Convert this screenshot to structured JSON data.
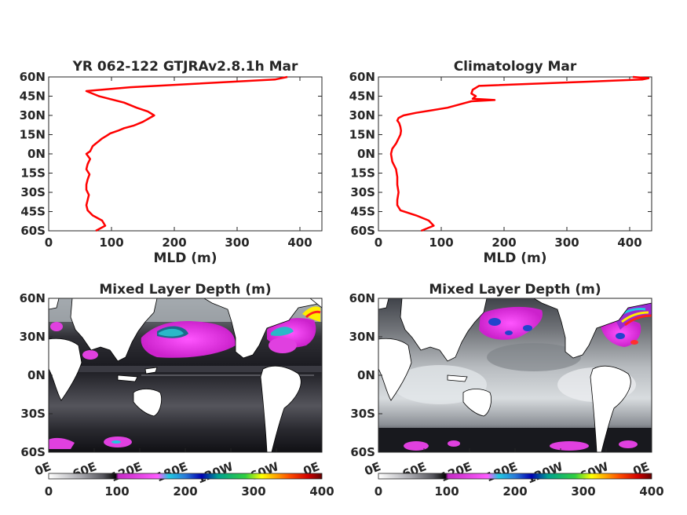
{
  "chart_data": [
    {
      "type": "line",
      "title": "YR 062-122 GTJRAv2.8.1h Mar",
      "xlabel": "MLD (m)",
      "ylabel": "",
      "xlim": [
        0,
        435
      ],
      "ylim": [
        -60,
        60
      ],
      "xticks": [
        "0",
        "100",
        "200",
        "300",
        "400"
      ],
      "yticks": [
        "60N",
        "45N",
        "30N",
        "15N",
        "0N",
        "15S",
        "30S",
        "45S",
        "60S"
      ],
      "line_color": "#ff0000",
      "series": [
        {
          "x": [
            75,
            90,
            85,
            70,
            62,
            60,
            62,
            64,
            60,
            60,
            62,
            65,
            60,
            62,
            66,
            60,
            66,
            68,
            70,
            75,
            80,
            85,
            92,
            98,
            110,
            120,
            135,
            150,
            168,
            158,
            140,
            120,
            80,
            60,
            130,
            360,
            380
          ],
          "y": [
            -60,
            -56,
            -52,
            -48,
            -44,
            -40,
            -36,
            -32,
            -28,
            -24,
            -20,
            -16,
            -12,
            -8,
            -4,
            0,
            2,
            4,
            6,
            8,
            10,
            12,
            14,
            16,
            18,
            20,
            22,
            25,
            30,
            33,
            36,
            40,
            45,
            49,
            52,
            58,
            60
          ]
        }
      ]
    },
    {
      "type": "line",
      "title": "Climatology Mar",
      "xlabel": "MLD (m)",
      "ylabel": "",
      "xlim": [
        0,
        435
      ],
      "ylim": [
        -60,
        60
      ],
      "xticks": [
        "0",
        "100",
        "200",
        "300",
        "400"
      ],
      "yticks": [
        "60N",
        "45N",
        "30N",
        "15N",
        "0N",
        "15S",
        "30S",
        "45S",
        "60S"
      ],
      "line_color": "#ff0000",
      "series": [
        {
          "x": [
            68,
            88,
            80,
            60,
            35,
            30,
            30,
            32,
            30,
            30,
            28,
            22,
            20,
            22,
            28,
            30,
            32,
            35,
            36,
            35,
            33,
            30,
            32,
            40,
            60,
            85,
            110,
            125,
            140,
            148,
            185,
            150,
            155,
            148,
            150,
            160,
            420,
            430,
            405
          ],
          "y": [
            -60,
            -56,
            -52,
            -48,
            -44,
            -40,
            -36,
            -30,
            -24,
            -18,
            -12,
            -6,
            0,
            4,
            8,
            10,
            12,
            15,
            18,
            21,
            24,
            26,
            28,
            30,
            32,
            34,
            36,
            38,
            40,
            41,
            42,
            43,
            45,
            47,
            50,
            53,
            58,
            59,
            60
          ]
        }
      ]
    },
    {
      "type": "heatmap",
      "title": "Mixed Layer Depth (m)",
      "xticks": [
        "0E",
        "60E",
        "120E",
        "180E",
        "120W",
        "60W",
        "0E"
      ],
      "yticks": [
        "60N",
        "30N",
        "0N",
        "30S",
        "60S"
      ],
      "colorbar_ticks": [
        "0",
        "100",
        "200",
        "300",
        "400"
      ],
      "colorbar_range": [
        0,
        400
      ],
      "colormap_stops": [
        "#ffffff",
        "#606066",
        "#000000",
        "#d82ed8",
        "#ff33ff",
        "#14d2dc",
        "#0000cc",
        "#00a090",
        "#ffff00",
        "#ff0000",
        "#660000"
      ]
    },
    {
      "type": "heatmap",
      "title": "Mixed Layer Depth (m)",
      "xticks": [
        "0E",
        "60E",
        "120E",
        "180E",
        "120W",
        "60W",
        "0E"
      ],
      "yticks": [
        "60N",
        "30N",
        "0N",
        "30S",
        "60S"
      ],
      "colorbar_ticks": [
        "0",
        "100",
        "200",
        "300",
        "400"
      ],
      "colorbar_range": [
        0,
        400
      ],
      "colormap_stops": [
        "#ffffff",
        "#606066",
        "#000000",
        "#d82ed8",
        "#ff33ff",
        "#14d2dc",
        "#0000cc",
        "#00a090",
        "#ffff00",
        "#ff0000",
        "#660000"
      ]
    }
  ]
}
